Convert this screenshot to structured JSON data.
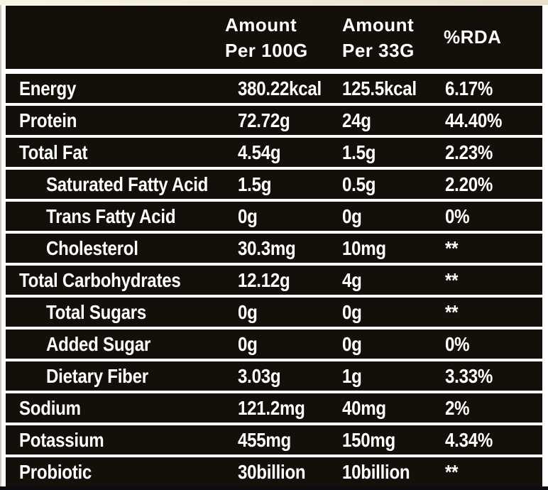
{
  "table": {
    "header": {
      "col_nutrient": "",
      "col_per100g": {
        "line1": "Amount",
        "line2": "Per 100G"
      },
      "col_per33g": {
        "line1": "Amount",
        "line2": "Per 33G"
      },
      "col_rda": "%RDA"
    },
    "rows": [
      {
        "label": "Energy",
        "per100g": "380.22kcal",
        "per33g": "125.5kcal",
        "rda": "6.17%",
        "indent": false
      },
      {
        "label": "Protein",
        "per100g": "72.72g",
        "per33g": "24g",
        "rda": "44.40%",
        "indent": false
      },
      {
        "label": "Total Fat",
        "per100g": "4.54g",
        "per33g": "1.5g",
        "rda": "2.23%",
        "indent": false
      },
      {
        "label": "Saturated Fatty Acid",
        "per100g": "1.5g",
        "per33g": "0.5g",
        "rda": "2.20%",
        "indent": true
      },
      {
        "label": "Trans Fatty Acid",
        "per100g": "0g",
        "per33g": "0g",
        "rda": "0%",
        "indent": true
      },
      {
        "label": "Cholesterol",
        "per100g": "30.3mg",
        "per33g": "10mg",
        "rda": "**",
        "indent": true
      },
      {
        "label": "Total Carbohydrates",
        "per100g": "12.12g",
        "per33g": "4g",
        "rda": "**",
        "indent": false
      },
      {
        "label": "Total Sugars",
        "per100g": "0g",
        "per33g": "0g",
        "rda": "**",
        "indent": true
      },
      {
        "label": "Added Sugar",
        "per100g": "0g",
        "per33g": "0g",
        "rda": "0%",
        "indent": true
      },
      {
        "label": "Dietary Fiber",
        "per100g": "3.03g",
        "per33g": "1g",
        "rda": "3.33%",
        "indent": true
      },
      {
        "label": "Sodium",
        "per100g": "121.2mg",
        "per33g": "40mg",
        "rda": "2%",
        "indent": false
      },
      {
        "label": "Potassium",
        "per100g": "455mg",
        "per33g": "150mg",
        "rda": "4.34%",
        "indent": false
      },
      {
        "label": "Probiotic",
        "per100g": "30billion",
        "per33g": "10billion",
        "rda": "**",
        "indent": false
      }
    ],
    "colors": {
      "row_background": "#150f0a",
      "text": "#ffffff",
      "gap_lines": "#ffffff",
      "top_strip_cream_left": "#f9f5e2",
      "top_strip_cream_right": "#e7dfc8",
      "bottom_bar": "#0c0e12"
    }
  }
}
